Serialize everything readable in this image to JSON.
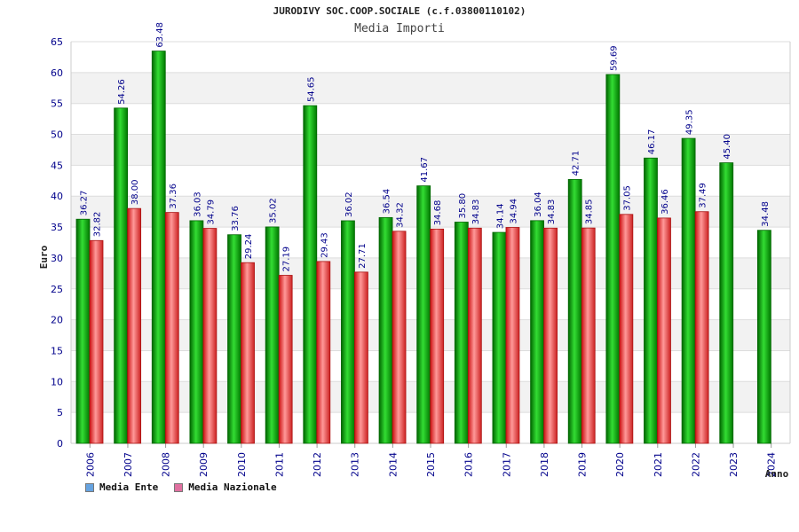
{
  "chart_data": {
    "type": "bar",
    "title": "JURODIVY SOC.COOP.SOCIALE (c.f.03800110102)",
    "subtitle": "Media Importi",
    "xlabel": "Anno",
    "ylabel": "Euro",
    "ylim": [
      0,
      65
    ],
    "yticks": [
      0,
      5,
      10,
      15,
      20,
      25,
      30,
      35,
      40,
      45,
      50,
      55,
      60,
      65
    ],
    "grid": true,
    "legend_position": "bottom-left",
    "categories": [
      "2006",
      "2007",
      "2008",
      "2009",
      "2010",
      "2011",
      "2012",
      "2013",
      "2014",
      "2015",
      "2016",
      "2017",
      "2018",
      "2019",
      "2020",
      "2021",
      "2022",
      "2023",
      "2024"
    ],
    "series": [
      {
        "name": "Media Ente",
        "color": "#00aa00",
        "legend_color": "#66a3e0",
        "values": [
          36.27,
          54.26,
          63.48,
          36.03,
          33.76,
          35.02,
          54.65,
          36.02,
          36.54,
          41.67,
          35.8,
          34.14,
          36.04,
          42.71,
          59.69,
          46.17,
          49.35,
          45.4,
          34.48
        ],
        "labels": [
          "36.27",
          "54.26",
          "63.48",
          "36.03",
          "33.76",
          "35.02",
          "54.65",
          "36.02",
          "36.54",
          "41.67",
          "35.80",
          "34.14",
          "36.04",
          "42.71",
          "59.69",
          "46.17",
          "49.35",
          "45.40",
          "34.48"
        ]
      },
      {
        "name": "Media Nazionale",
        "color": "#dd2222",
        "legend_color": "#e070a0",
        "values": [
          32.82,
          38.0,
          37.36,
          34.79,
          29.24,
          27.19,
          29.43,
          27.71,
          34.32,
          34.68,
          34.83,
          34.94,
          34.83,
          34.85,
          37.05,
          36.46,
          37.49,
          null,
          null
        ],
        "labels": [
          "32.82",
          "38.00",
          "37.36",
          "34.79",
          "29.24",
          "27.19",
          "29.43",
          "27.71",
          "34.32",
          "34.68",
          "34.83",
          "34.94",
          "34.83",
          "34.85",
          "37.05",
          "36.46",
          "37.49",
          null,
          null
        ]
      }
    ]
  }
}
